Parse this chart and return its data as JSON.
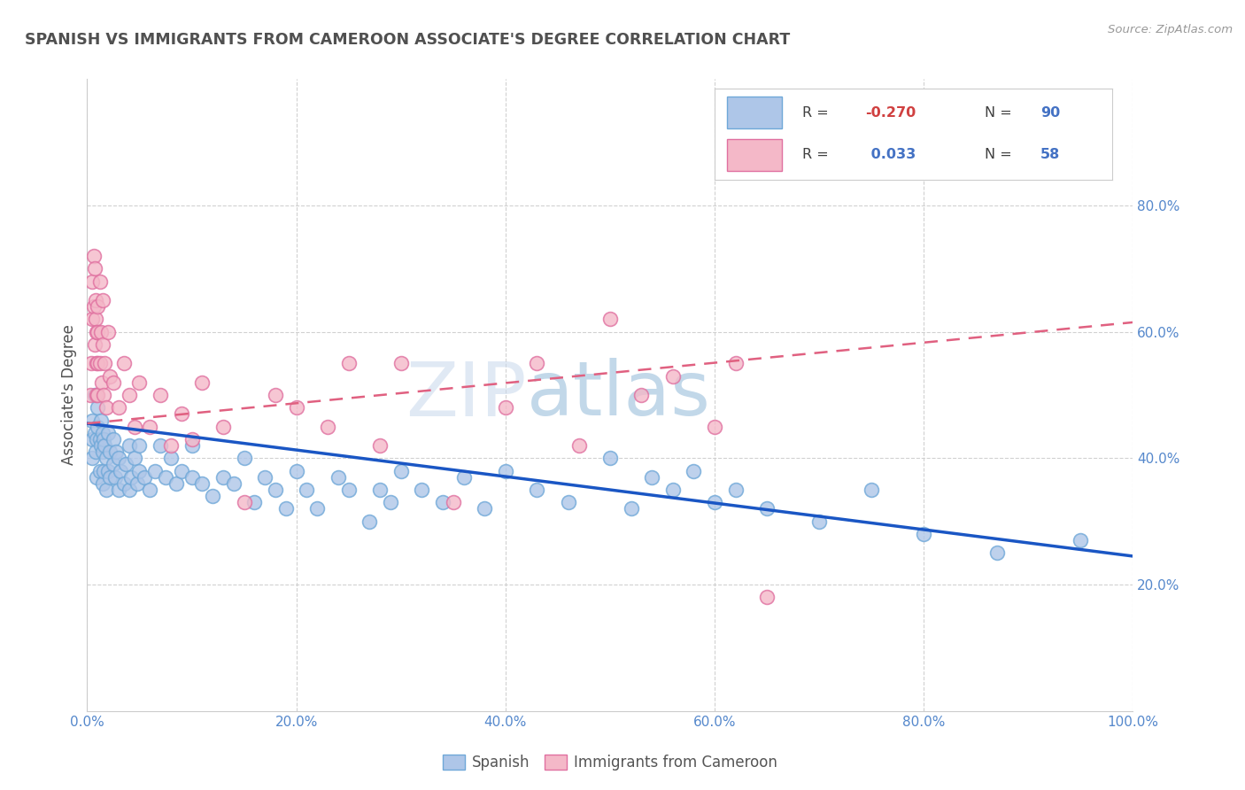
{
  "title": "SPANISH VS IMMIGRANTS FROM CAMEROON ASSOCIATE'S DEGREE CORRELATION CHART",
  "source_text": "Source: ZipAtlas.com",
  "ylabel": "Associate's Degree",
  "xlim": [
    0,
    1
  ],
  "ylim": [
    0,
    1
  ],
  "xticks": [
    0.0,
    0.2,
    0.4,
    0.6,
    0.8,
    1.0
  ],
  "xtick_labels": [
    "0.0%",
    "20.0%",
    "40.0%",
    "60.0%",
    "80.0%",
    "100.0%"
  ],
  "ytick_positions": [
    0.2,
    0.4,
    0.6,
    0.8
  ],
  "ytick_labels": [
    "20.0%",
    "40.0%",
    "60.0%",
    "80.0%"
  ],
  "legend_R1": "-0.270",
  "legend_N1": "90",
  "legend_R2": "0.033",
  "legend_N2": "58",
  "series1_color": "#aec6e8",
  "series1_edge": "#6fa8d8",
  "series2_color": "#f4b8c8",
  "series2_edge": "#e070a0",
  "trendline1_color": "#1a56c4",
  "trendline2_color": "#e06080",
  "watermark_zip": "ZIP",
  "watermark_atlas": "atlas",
  "background_color": "#ffffff",
  "grid_color": "#cccccc",
  "title_color": "#505050",
  "ylabel_color": "#505050",
  "tick_color": "#5588cc",
  "ytick_color": "#5588cc",
  "trendline1_y0": 0.455,
  "trendline1_y1": 0.245,
  "trendline2_y0": 0.455,
  "trendline2_y1": 0.615,
  "spanish_x": [
    0.005,
    0.005,
    0.005,
    0.007,
    0.007,
    0.008,
    0.009,
    0.009,
    0.01,
    0.01,
    0.012,
    0.012,
    0.013,
    0.013,
    0.015,
    0.015,
    0.015,
    0.016,
    0.016,
    0.017,
    0.018,
    0.018,
    0.02,
    0.02,
    0.022,
    0.022,
    0.025,
    0.025,
    0.027,
    0.028,
    0.03,
    0.03,
    0.032,
    0.035,
    0.037,
    0.04,
    0.04,
    0.042,
    0.045,
    0.048,
    0.05,
    0.05,
    0.055,
    0.06,
    0.065,
    0.07,
    0.075,
    0.08,
    0.085,
    0.09,
    0.1,
    0.1,
    0.11,
    0.12,
    0.13,
    0.14,
    0.15,
    0.16,
    0.17,
    0.18,
    0.19,
    0.2,
    0.21,
    0.22,
    0.24,
    0.25,
    0.27,
    0.28,
    0.29,
    0.3,
    0.32,
    0.34,
    0.36,
    0.38,
    0.4,
    0.43,
    0.46,
    0.5,
    0.52,
    0.54,
    0.56,
    0.58,
    0.6,
    0.62,
    0.65,
    0.7,
    0.75,
    0.8,
    0.87,
    0.95
  ],
  "spanish_y": [
    0.43,
    0.46,
    0.4,
    0.44,
    0.5,
    0.41,
    0.43,
    0.37,
    0.45,
    0.48,
    0.43,
    0.38,
    0.42,
    0.46,
    0.44,
    0.41,
    0.36,
    0.43,
    0.38,
    0.42,
    0.4,
    0.35,
    0.44,
    0.38,
    0.41,
    0.37,
    0.43,
    0.39,
    0.37,
    0.41,
    0.4,
    0.35,
    0.38,
    0.36,
    0.39,
    0.42,
    0.35,
    0.37,
    0.4,
    0.36,
    0.38,
    0.42,
    0.37,
    0.35,
    0.38,
    0.42,
    0.37,
    0.4,
    0.36,
    0.38,
    0.42,
    0.37,
    0.36,
    0.34,
    0.37,
    0.36,
    0.4,
    0.33,
    0.37,
    0.35,
    0.32,
    0.38,
    0.35,
    0.32,
    0.37,
    0.35,
    0.3,
    0.35,
    0.33,
    0.38,
    0.35,
    0.33,
    0.37,
    0.32,
    0.38,
    0.35,
    0.33,
    0.4,
    0.32,
    0.37,
    0.35,
    0.38,
    0.33,
    0.35,
    0.32,
    0.3,
    0.35,
    0.28,
    0.25,
    0.27
  ],
  "cameroon_x": [
    0.003,
    0.004,
    0.005,
    0.005,
    0.006,
    0.006,
    0.007,
    0.007,
    0.008,
    0.008,
    0.009,
    0.009,
    0.009,
    0.01,
    0.01,
    0.01,
    0.01,
    0.012,
    0.012,
    0.013,
    0.014,
    0.015,
    0.015,
    0.016,
    0.017,
    0.018,
    0.02,
    0.022,
    0.025,
    0.03,
    0.035,
    0.04,
    0.045,
    0.05,
    0.06,
    0.07,
    0.08,
    0.09,
    0.1,
    0.11,
    0.13,
    0.15,
    0.18,
    0.2,
    0.23,
    0.25,
    0.28,
    0.3,
    0.35,
    0.4,
    0.43,
    0.47,
    0.5,
    0.53,
    0.56,
    0.6,
    0.62,
    0.65
  ],
  "cameroon_y": [
    0.5,
    0.55,
    0.62,
    0.68,
    0.72,
    0.64,
    0.7,
    0.58,
    0.65,
    0.62,
    0.6,
    0.55,
    0.5,
    0.64,
    0.6,
    0.55,
    0.5,
    0.68,
    0.55,
    0.6,
    0.52,
    0.58,
    0.65,
    0.5,
    0.55,
    0.48,
    0.6,
    0.53,
    0.52,
    0.48,
    0.55,
    0.5,
    0.45,
    0.52,
    0.45,
    0.5,
    0.42,
    0.47,
    0.43,
    0.52,
    0.45,
    0.33,
    0.5,
    0.48,
    0.45,
    0.55,
    0.42,
    0.55,
    0.33,
    0.48,
    0.55,
    0.42,
    0.62,
    0.5,
    0.53,
    0.45,
    0.55,
    0.18
  ]
}
